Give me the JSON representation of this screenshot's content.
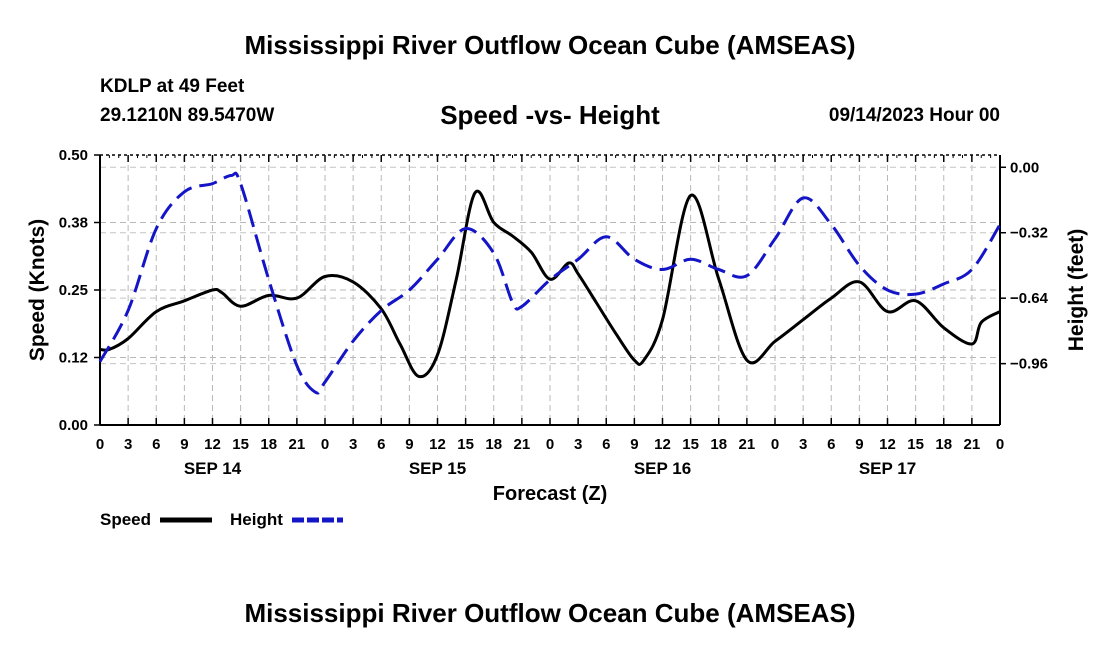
{
  "page": {
    "title": "Mississippi River Outflow Ocean Cube (AMSEAS)",
    "footer_title": "Mississippi River Outflow Ocean Cube (AMSEAS)",
    "station": "KDLP at 49 Feet",
    "coordinates": "29.1210N  89.5470W",
    "subtitle": "Speed -vs- Height",
    "datetime": "09/14/2023 Hour 00"
  },
  "chart_data": {
    "type": "line",
    "title": "Speed -vs- Height",
    "xlabel": "Forecast (Z)",
    "ylabel": "Speed (Knots)",
    "y2label": "Height (feet)",
    "xlim": [
      0,
      96
    ],
    "ylim": [
      0,
      0.5
    ],
    "y2lim": [
      -1.26,
      0.06
    ],
    "grid": true,
    "x_tick_hours": [
      0,
      3,
      6,
      9,
      12,
      15,
      18,
      21,
      24,
      27,
      30,
      33,
      36,
      39,
      42,
      45,
      48,
      51,
      54,
      57,
      60,
      63,
      66,
      69,
      72,
      75,
      78,
      81,
      84,
      87,
      90,
      93,
      96
    ],
    "x_tick_labels": [
      "0",
      "3",
      "6",
      "9",
      "12",
      "15",
      "18",
      "21",
      "0",
      "3",
      "6",
      "9",
      "12",
      "15",
      "18",
      "21",
      "0",
      "3",
      "6",
      "9",
      "12",
      "15",
      "18",
      "21",
      "0",
      "3",
      "6",
      "9",
      "12",
      "15",
      "18",
      "21",
      "0"
    ],
    "date_labels": [
      {
        "hour": 12,
        "label": "SEP 14"
      },
      {
        "hour": 36,
        "label": "SEP 15"
      },
      {
        "hour": 60,
        "label": "SEP 16"
      },
      {
        "hour": 84,
        "label": "SEP 17"
      }
    ],
    "y_ticks": [
      {
        "value": 0.0,
        "label": "0.00"
      },
      {
        "value": 0.125,
        "label": "0.12"
      },
      {
        "value": 0.25,
        "label": "0.25"
      },
      {
        "value": 0.375,
        "label": "0.38"
      },
      {
        "value": 0.5,
        "label": "0.50"
      }
    ],
    "y2_ticks": [
      {
        "value": 0.0,
        "label": "0.00"
      },
      {
        "value": -0.32,
        "label": "−0.32"
      },
      {
        "value": -0.64,
        "label": "−0.64"
      },
      {
        "value": -0.96,
        "label": "−0.96"
      }
    ],
    "legend": {
      "position": "bottom-left",
      "entries": [
        {
          "label": "Speed",
          "color": "#000000",
          "style": "solid"
        },
        {
          "label": "Height",
          "color": "#1515c8",
          "style": "dashed"
        }
      ]
    },
    "series": [
      {
        "name": "Speed",
        "axis": "left",
        "color": "#000000",
        "style": "solid",
        "x": [
          0,
          1,
          3,
          6,
          9,
          12,
          13,
          15,
          18,
          21,
          24,
          27,
          30,
          32,
          34,
          36,
          38,
          40,
          42,
          44,
          46,
          48,
          50,
          51,
          53,
          55,
          57,
          58,
          60,
          63,
          66,
          69,
          72,
          75,
          78,
          81,
          84,
          87,
          90,
          93,
          94,
          96
        ],
        "y": [
          0.14,
          0.14,
          0.16,
          0.21,
          0.23,
          0.25,
          0.245,
          0.22,
          0.24,
          0.235,
          0.275,
          0.265,
          0.215,
          0.15,
          0.09,
          0.13,
          0.27,
          0.43,
          0.375,
          0.35,
          0.32,
          0.27,
          0.3,
          0.28,
          0.225,
          0.17,
          0.12,
          0.12,
          0.195,
          0.425,
          0.27,
          0.12,
          0.155,
          0.195,
          0.235,
          0.265,
          0.21,
          0.23,
          0.18,
          0.15,
          0.19,
          0.21
        ]
      },
      {
        "name": "Height",
        "axis": "right",
        "color": "#1515c8",
        "style": "dashed",
        "x": [
          0,
          3,
          6,
          9,
          12,
          14,
          15,
          18,
          21,
          23,
          24,
          27,
          30,
          33,
          36,
          39,
          42,
          44,
          45,
          48,
          51,
          54,
          57,
          60,
          63,
          66,
          69,
          72,
          75,
          78,
          81,
          84,
          87,
          90,
          93,
          96
        ],
        "y": [
          -0.95,
          -0.7,
          -0.3,
          -0.12,
          -0.08,
          -0.04,
          -0.08,
          -0.55,
          -0.97,
          -1.1,
          -1.05,
          -0.85,
          -0.7,
          -0.6,
          -0.45,
          -0.3,
          -0.42,
          -0.66,
          -0.68,
          -0.55,
          -0.45,
          -0.34,
          -0.45,
          -0.5,
          -0.45,
          -0.5,
          -0.53,
          -0.35,
          -0.15,
          -0.28,
          -0.48,
          -0.6,
          -0.62,
          -0.57,
          -0.5,
          -0.28
        ]
      }
    ]
  }
}
